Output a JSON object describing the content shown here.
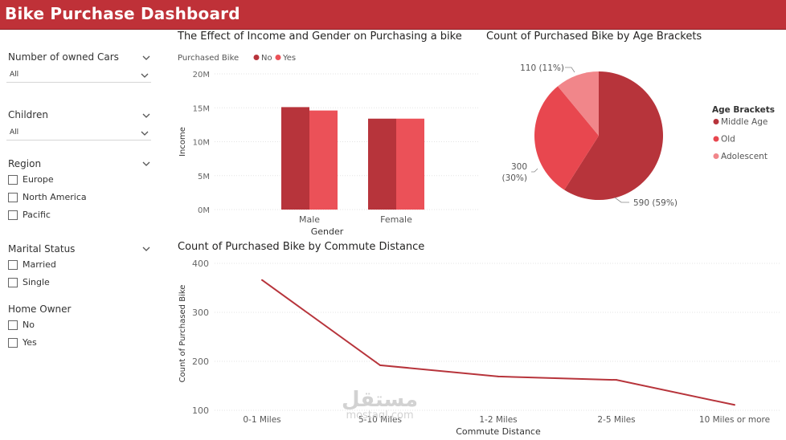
{
  "header": {
    "title": "Bike Purchase Dashboard"
  },
  "sidebar": {
    "cars": {
      "title": "Number of owned Cars",
      "value": "All"
    },
    "children": {
      "title": "Children",
      "value": "All"
    },
    "region": {
      "title": "Region",
      "options": [
        "Europe",
        "North America",
        "Pacific"
      ]
    },
    "marital": {
      "title": "Marital Status",
      "options": [
        "Married",
        "Single"
      ]
    },
    "home_owner": {
      "title": "Home Owner",
      "options": [
        "No",
        "Yes"
      ]
    }
  },
  "watermark": {
    "text1": "مستقل",
    "text2": "mostaql.com"
  },
  "chart_data": [
    {
      "type": "bar",
      "title": "The Effect of Income and Gender on Purchasing a bike",
      "xlabel": "Gender",
      "ylabel": "Income",
      "legend_title": "Purchased Bike",
      "legend_position": "top-left",
      "categories": [
        "Male",
        "Female"
      ],
      "series": [
        {
          "name": "No",
          "values": [
            15100000,
            13400000
          ],
          "color": "#b7343b"
        },
        {
          "name": "Yes",
          "values": [
            14600000,
            13400000
          ],
          "color": "#eb5158"
        }
      ],
      "ylim": [
        0,
        20000000
      ],
      "yticks": [
        "0M",
        "5M",
        "10M",
        "15M",
        "20M"
      ],
      "grid": true
    },
    {
      "type": "pie",
      "title": "Count of Purchased Bike by Age Brackets",
      "legend_title": "Age Brackets",
      "legend_position": "right",
      "slices": [
        {
          "name": "Middle Age",
          "value": 590,
          "label": "590 (59%)",
          "color": "#b7343b"
        },
        {
          "name": "Old",
          "value": 300,
          "label_value": "300",
          "label_pct": "(30%)",
          "color": "#e8474f"
        },
        {
          "name": "Adolescent",
          "value": 110,
          "label": "110 (11%)",
          "color": "#f1868a"
        }
      ]
    },
    {
      "type": "line",
      "title": "Count of Purchased Bike by Commute Distance",
      "xlabel": "Commute Distance",
      "ylabel": "Count of Purchased Bike",
      "categories": [
        "0-1 Miles",
        "5-10 Miles",
        "1-2 Miles",
        "2-5 Miles",
        "10 Miles or more"
      ],
      "values": [
        366,
        192,
        169,
        162,
        111
      ],
      "ylim": [
        100,
        400
      ],
      "yticks": [
        "100",
        "200",
        "300",
        "400"
      ],
      "color": "#b7343b",
      "grid": true
    }
  ]
}
